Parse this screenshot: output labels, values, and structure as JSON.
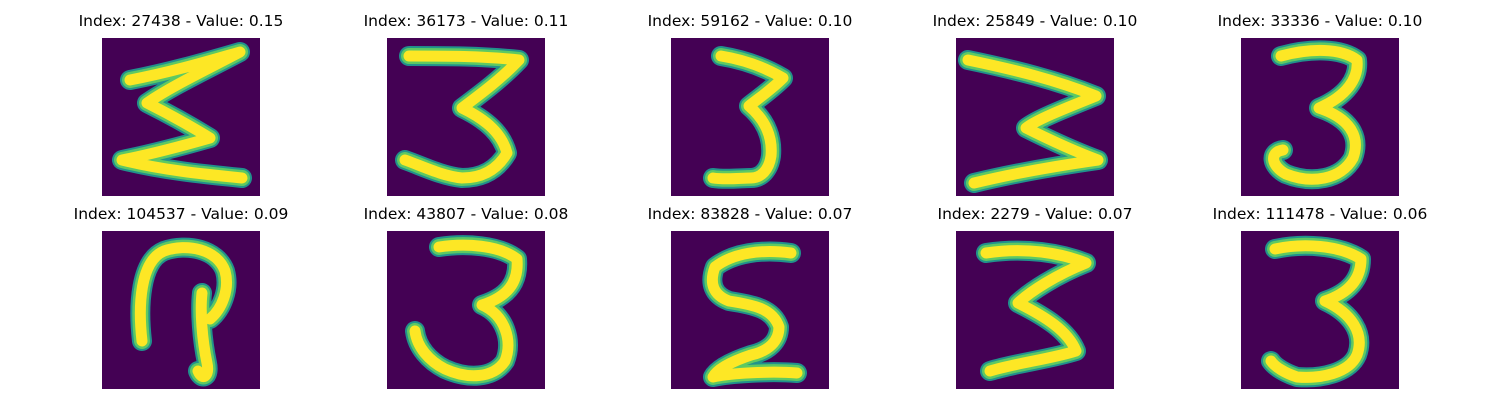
{
  "colors": {
    "background": "#440154",
    "stroke_outer": "#21918c",
    "stroke_mid": "#5ec962",
    "stroke_core": "#fde725"
  },
  "tiles": [
    {
      "title": "Index: 27438 - Value: 0.15",
      "glyph": "sigma"
    },
    {
      "title": "Index: 36173 - Value: 0.11",
      "glyph": "three-z"
    },
    {
      "title": "Index: 59162 - Value: 0.10",
      "glyph": "three-narrow"
    },
    {
      "title": "Index: 25849 - Value: 0.10",
      "glyph": "w-rotated"
    },
    {
      "title": "Index: 33336 - Value: 0.10",
      "glyph": "three-round"
    },
    {
      "title": "Index: 104537 - Value: 0.09",
      "glyph": "loop"
    },
    {
      "title": "Index: 43807 - Value: 0.08",
      "glyph": "three-thin"
    },
    {
      "title": "Index: 83828 - Value: 0.07",
      "glyph": "epsilon"
    },
    {
      "title": "Index: 2279 - Value: 0.07",
      "glyph": "w-rotated-bold"
    },
    {
      "title": "Index: 111478 - Value: 0.06",
      "glyph": "three-plain"
    }
  ]
}
